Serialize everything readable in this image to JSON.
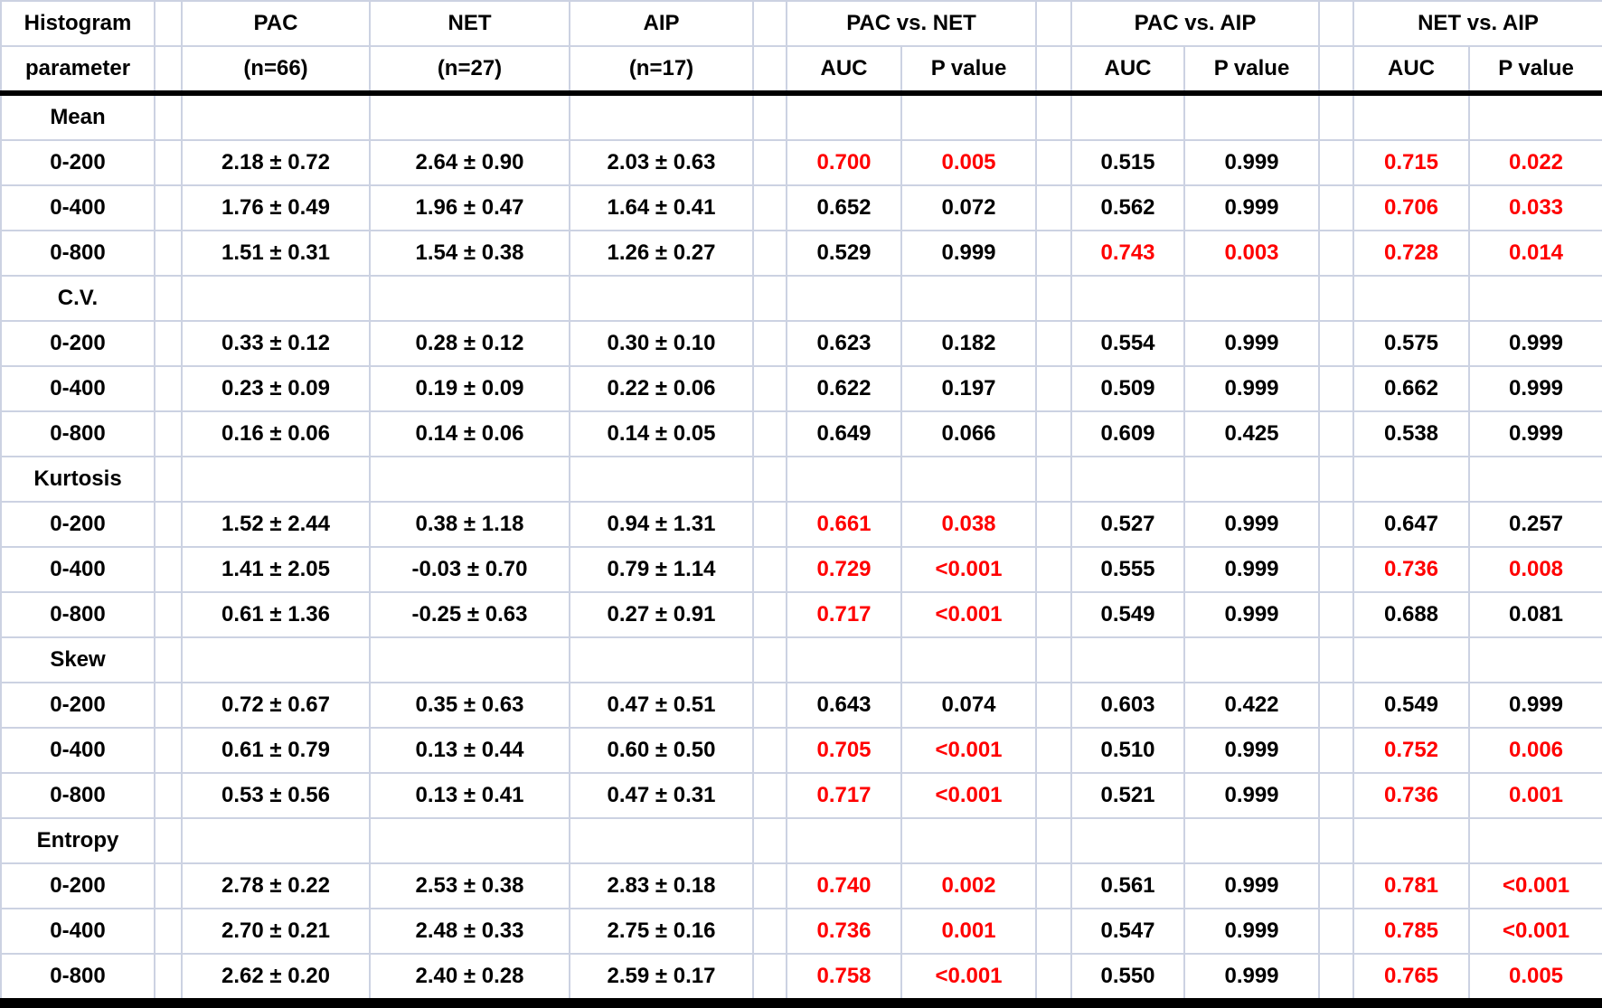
{
  "colors": {
    "significant_text": "#ff0000",
    "normal_text": "#000000",
    "grid_border": "#ccd2e2",
    "header_rule": "#000000"
  },
  "table": {
    "header": {
      "param_line1": "Histogram",
      "param_line2": "parameter",
      "groups": [
        {
          "name": "PAC",
          "n": "(n=66)"
        },
        {
          "name": "NET",
          "n": "(n=27)"
        },
        {
          "name": "AIP",
          "n": "(n=17)"
        }
      ],
      "comparisons": [
        {
          "name": "PAC vs. NET",
          "auc_label": "AUC",
          "p_label": "P value"
        },
        {
          "name": "PAC vs. AIP",
          "auc_label": "AUC",
          "p_label": "P value"
        },
        {
          "name": "NET vs. AIP",
          "auc_label": "AUC",
          "p_label": "P value"
        }
      ]
    },
    "sections": [
      {
        "name": "Mean",
        "rows": [
          {
            "range": "0-200",
            "values": [
              "2.18 ± 0.72",
              "2.64 ± 0.90",
              "2.03 ± 0.63"
            ],
            "stats": [
              "0.700",
              "0.005",
              "0.515",
              "0.999",
              "0.715",
              "0.022"
            ],
            "sig": [
              true,
              true,
              false,
              false,
              true,
              true
            ]
          },
          {
            "range": "0-400",
            "values": [
              "1.76 ± 0.49",
              "1.96 ± 0.47",
              "1.64 ± 0.41"
            ],
            "stats": [
              "0.652",
              "0.072",
              "0.562",
              "0.999",
              "0.706",
              "0.033"
            ],
            "sig": [
              false,
              false,
              false,
              false,
              true,
              true
            ]
          },
          {
            "range": "0-800",
            "values": [
              "1.51 ± 0.31",
              "1.54 ± 0.38",
              "1.26 ± 0.27"
            ],
            "stats": [
              "0.529",
              "0.999",
              "0.743",
              "0.003",
              "0.728",
              "0.014"
            ],
            "sig": [
              false,
              false,
              true,
              true,
              true,
              true
            ]
          }
        ]
      },
      {
        "name": "C.V.",
        "rows": [
          {
            "range": "0-200",
            "values": [
              "0.33 ± 0.12",
              "0.28 ± 0.12",
              "0.30 ± 0.10"
            ],
            "stats": [
              "0.623",
              "0.182",
              "0.554",
              "0.999",
              "0.575",
              "0.999"
            ],
            "sig": [
              false,
              false,
              false,
              false,
              false,
              false
            ]
          },
          {
            "range": "0-400",
            "values": [
              "0.23 ± 0.09",
              "0.19 ± 0.09",
              "0.22 ± 0.06"
            ],
            "stats": [
              "0.622",
              "0.197",
              "0.509",
              "0.999",
              "0.662",
              "0.999"
            ],
            "sig": [
              false,
              false,
              false,
              false,
              false,
              false
            ]
          },
          {
            "range": "0-800",
            "values": [
              "0.16 ± 0.06",
              "0.14 ± 0.06",
              "0.14 ± 0.05"
            ],
            "stats": [
              "0.649",
              "0.066",
              "0.609",
              "0.425",
              "0.538",
              "0.999"
            ],
            "sig": [
              false,
              false,
              false,
              false,
              false,
              false
            ]
          }
        ]
      },
      {
        "name": "Kurtosis",
        "rows": [
          {
            "range": "0-200",
            "values": [
              "1.52 ± 2.44",
              "0.38 ± 1.18",
              "0.94 ± 1.31"
            ],
            "stats": [
              "0.661",
              "0.038",
              "0.527",
              "0.999",
              "0.647",
              "0.257"
            ],
            "sig": [
              true,
              true,
              false,
              false,
              false,
              false
            ]
          },
          {
            "range": "0-400",
            "values": [
              "1.41 ± 2.05",
              "-0.03 ± 0.70",
              "0.79 ± 1.14"
            ],
            "stats": [
              "0.729",
              "<0.001",
              "0.555",
              "0.999",
              "0.736",
              "0.008"
            ],
            "sig": [
              true,
              true,
              false,
              false,
              true,
              true
            ]
          },
          {
            "range": "0-800",
            "values": [
              "0.61 ± 1.36",
              "-0.25 ± 0.63",
              "0.27 ± 0.91"
            ],
            "stats": [
              "0.717",
              "<0.001",
              "0.549",
              "0.999",
              "0.688",
              "0.081"
            ],
            "sig": [
              true,
              true,
              false,
              false,
              false,
              false
            ]
          }
        ]
      },
      {
        "name": "Skew",
        "rows": [
          {
            "range": "0-200",
            "values": [
              "0.72 ± 0.67",
              "0.35 ± 0.63",
              "0.47 ± 0.51"
            ],
            "stats": [
              "0.643",
              "0.074",
              "0.603",
              "0.422",
              "0.549",
              "0.999"
            ],
            "sig": [
              false,
              false,
              false,
              false,
              false,
              false
            ]
          },
          {
            "range": "0-400",
            "values": [
              "0.61 ± 0.79",
              "0.13 ± 0.44",
              "0.60 ± 0.50"
            ],
            "stats": [
              "0.705",
              "<0.001",
              "0.510",
              "0.999",
              "0.752",
              "0.006"
            ],
            "sig": [
              true,
              true,
              false,
              false,
              true,
              true
            ]
          },
          {
            "range": "0-800",
            "values": [
              "0.53 ± 0.56",
              "0.13 ± 0.41",
              "0.47 ± 0.31"
            ],
            "stats": [
              "0.717",
              "<0.001",
              "0.521",
              "0.999",
              "0.736",
              "0.001"
            ],
            "sig": [
              true,
              true,
              false,
              false,
              true,
              true
            ]
          }
        ]
      },
      {
        "name": "Entropy",
        "rows": [
          {
            "range": "0-200",
            "values": [
              "2.78 ± 0.22",
              "2.53 ± 0.38",
              "2.83 ± 0.18"
            ],
            "stats": [
              "0.740",
              "0.002",
              "0.561",
              "0.999",
              "0.781",
              "<0.001"
            ],
            "sig": [
              true,
              true,
              false,
              false,
              true,
              true
            ]
          },
          {
            "range": "0-400",
            "values": [
              "2.70 ± 0.21",
              "2.48 ± 0.33",
              "2.75 ± 0.16"
            ],
            "stats": [
              "0.736",
              "0.001",
              "0.547",
              "0.999",
              "0.785",
              "<0.001"
            ],
            "sig": [
              true,
              true,
              false,
              false,
              true,
              true
            ]
          },
          {
            "range": "0-800",
            "values": [
              "2.62 ± 0.20",
              "2.40 ± 0.28",
              "2.59 ± 0.17"
            ],
            "stats": [
              "0.758",
              "<0.001",
              "0.550",
              "0.999",
              "0.765",
              "0.005"
            ],
            "sig": [
              true,
              true,
              false,
              false,
              true,
              true
            ]
          }
        ]
      }
    ]
  }
}
